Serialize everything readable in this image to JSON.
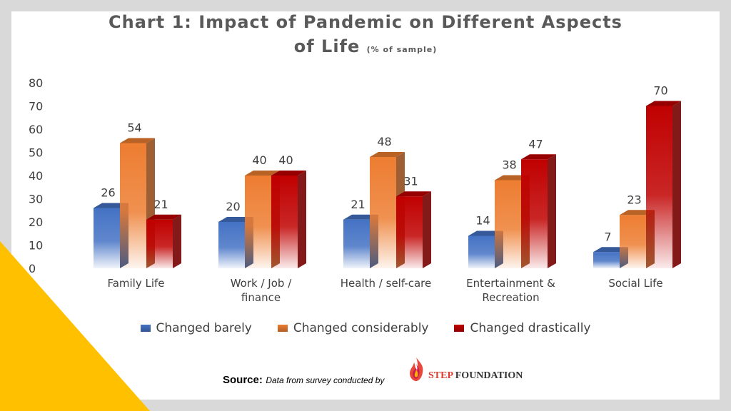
{
  "title": {
    "main": "Chart 1: Impact of Pandemic on Different Aspects of Life",
    "line1": "Chart 1: Impact of Pandemic on Different Aspects",
    "line2": "of Life",
    "subtitle": "(% of sample)"
  },
  "chart_data": {
    "type": "bar",
    "categories": [
      "Family Life",
      "Work / Job / finance",
      "Health / self-care",
      "Entertainment & Recreation",
      "Social Life"
    ],
    "category_lines": [
      [
        "Family Life"
      ],
      [
        "Work / Job /",
        "finance"
      ],
      [
        "Health / self-care"
      ],
      [
        "Entertainment &",
        "Recreation"
      ],
      [
        "Social Life"
      ]
    ],
    "series": [
      {
        "name": "Changed barely",
        "values": [
          26,
          20,
          21,
          14,
          7
        ],
        "color": "#4472c4"
      },
      {
        "name": "Changed considerably",
        "values": [
          54,
          40,
          48,
          38,
          23
        ],
        "color": "#ed7d31"
      },
      {
        "name": "Changed drastically",
        "values": [
          21,
          40,
          31,
          47,
          70
        ],
        "color": "#c00000"
      }
    ],
    "ylim": [
      0,
      80
    ],
    "yticks": [
      0,
      10,
      20,
      30,
      40,
      50,
      60,
      70,
      80
    ],
    "grid": false,
    "legend_position": "bottom",
    "data_labels": true
  },
  "source": {
    "label": "Source:",
    "text": "Data from survey conducted by",
    "org_prefix": "ST",
    "org_highlight": "E",
    "org_suffix": "P",
    "org_word": "FOUNDATION"
  },
  "colors": {
    "accent_corner": "#ffc000",
    "frame": "#d9d9d9"
  }
}
